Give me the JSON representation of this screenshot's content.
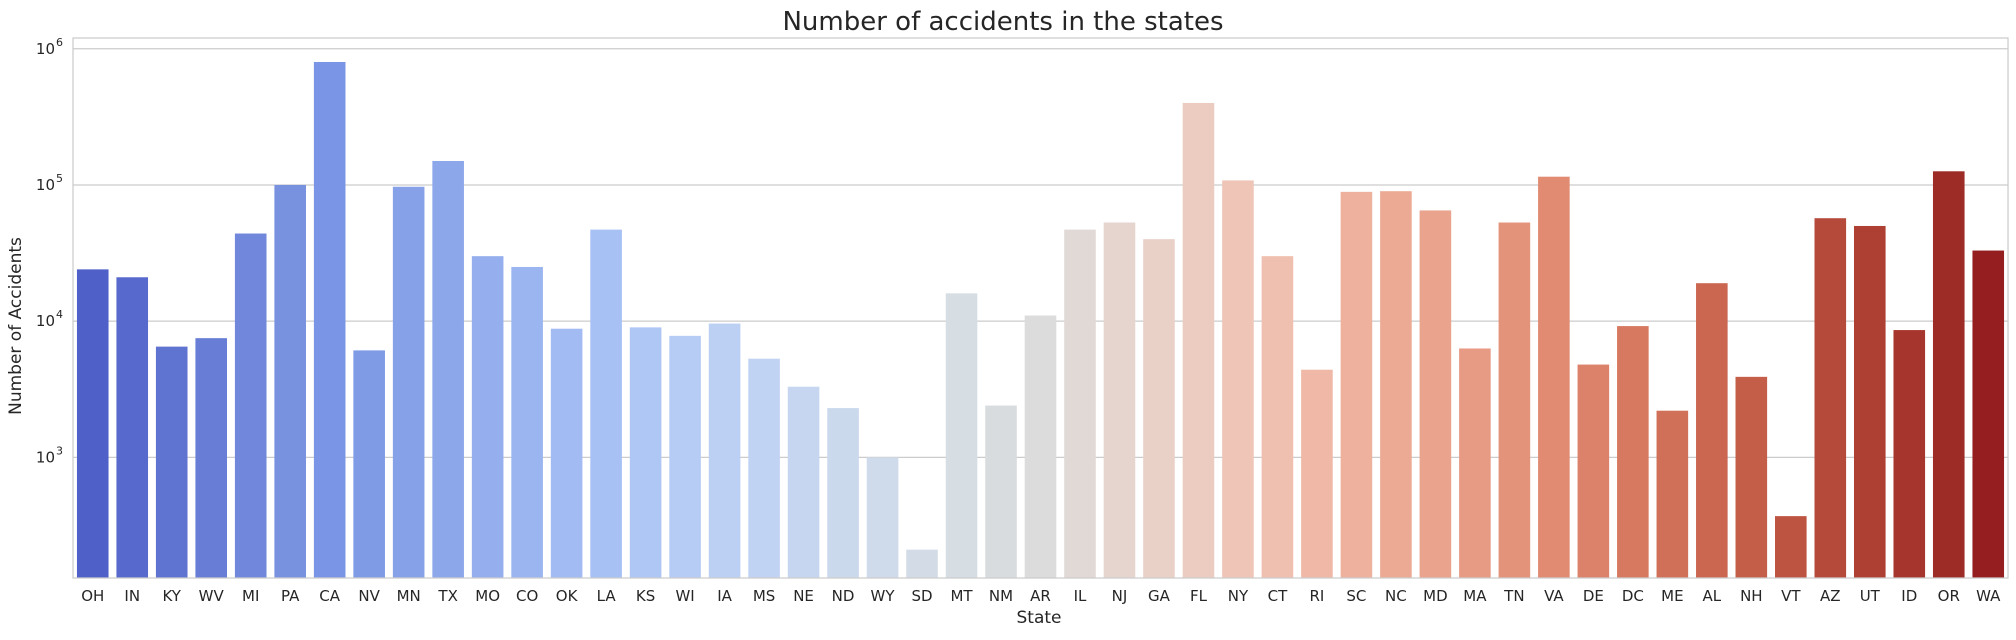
{
  "chart_data": {
    "type": "bar",
    "title": "Number of accidents in the states",
    "xlabel": "State",
    "ylabel": "Number of Accidents",
    "yscale": "log",
    "ylim": [
      130,
      1200000
    ],
    "yticks": [
      {
        "value": 1000,
        "base": "10",
        "exp": "3"
      },
      {
        "value": 10000,
        "base": "10",
        "exp": "4"
      },
      {
        "value": 100000,
        "base": "10",
        "exp": "5"
      },
      {
        "value": 1000000,
        "base": "10",
        "exp": "6"
      }
    ],
    "grid": "horizontal",
    "palette": "coolwarm",
    "categories": [
      "OH",
      "IN",
      "KY",
      "WV",
      "MI",
      "PA",
      "CA",
      "NV",
      "MN",
      "TX",
      "MO",
      "CO",
      "OK",
      "LA",
      "KS",
      "WI",
      "IA",
      "MS",
      "NE",
      "ND",
      "WY",
      "SD",
      "MT",
      "NM",
      "AR",
      "IL",
      "NJ",
      "GA",
      "FL",
      "NY",
      "CT",
      "RI",
      "SC",
      "NC",
      "MD",
      "MA",
      "TN",
      "VA",
      "DE",
      "DC",
      "ME",
      "AL",
      "NH",
      "VT",
      "AZ",
      "UT",
      "ID",
      "OR",
      "WA"
    ],
    "values": [
      24000,
      21000,
      6500,
      7500,
      44000,
      100000,
      800000,
      6100,
      97000,
      150000,
      30000,
      25000,
      8800,
      47000,
      9000,
      7800,
      9600,
      5300,
      3300,
      2300,
      1000,
      210,
      16000,
      2400,
      11000,
      47000,
      53000,
      40000,
      400000,
      108000,
      30000,
      4400,
      89000,
      90000,
      65000,
      6300,
      53000,
      115000,
      4800,
      9200,
      2200,
      19000,
      3900,
      370,
      57000,
      50000,
      8600,
      126000,
      33000
    ],
    "colors": [
      "#4f60c8",
      "#5769cc",
      "#5f73d1",
      "#677dd6",
      "#7087db",
      "#7992e0",
      "#7b95e6",
      "#7f9be6",
      "#86a1e8",
      "#8da7eb",
      "#94aeee",
      "#9bb5f1",
      "#a2bbf3",
      "#a8c1f5",
      "#afc7f5",
      "#b6ccf5",
      "#bcd0f4",
      "#c1d3f2",
      "#c6d6f0",
      "#cbd9ed",
      "#cfdbea",
      "#d3dce6",
      "#d6dde3",
      "#d9dcde",
      "#dcdcdc",
      "#e1d9d6",
      "#e6d5cf",
      "#e9d1c8",
      "#ecccc0",
      "#eec5b7",
      "#efbfaf",
      "#efb8a7",
      "#eeb19e",
      "#ecaa95",
      "#eaa38c",
      "#e79b84",
      "#e4937b",
      "#e08b72",
      "#dc826a",
      "#d77961",
      "#d17058",
      "#cb6750",
      "#c45e48",
      "#bd5441",
      "#b64a3a",
      "#ae4033",
      "#a6362d",
      "#9d2b26",
      "#941e20"
    ]
  }
}
